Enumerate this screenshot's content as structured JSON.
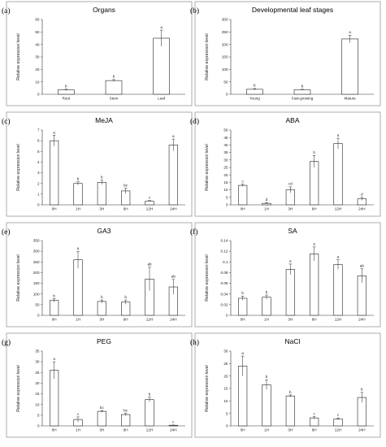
{
  "figure": {
    "ylabel": "Relative expression level"
  },
  "chart_data": [
    {
      "type": "bar",
      "letter": "(a)",
      "title": "Organs",
      "categories": [
        "Root",
        "Stem",
        "Leaf"
      ],
      "values": [
        3.5,
        11,
        45
      ],
      "errors": [
        0.6,
        0.8,
        6.5
      ],
      "significance": [
        "b",
        "b",
        "a"
      ],
      "ylim": [
        0,
        60
      ],
      "yticks": [
        0,
        10,
        20,
        30,
        40,
        50,
        60
      ]
    },
    {
      "type": "bar",
      "letter": "(b)",
      "title": "Developmental leaf stages",
      "categories": [
        "Young",
        "Fast-growing",
        "Mature"
      ],
      "values": [
        20,
        18,
        222
      ],
      "errors": [
        3,
        2,
        15
      ],
      "significance": [
        "b",
        "b",
        "a"
      ],
      "ylim": [
        0,
        300
      ],
      "yticks": [
        0,
        50,
        100,
        150,
        200,
        250,
        300
      ]
    },
    {
      "type": "bar",
      "letter": "(c)",
      "title": "MeJA",
      "categories": [
        "0H",
        "1H",
        "3H",
        "6H",
        "12H",
        "24H"
      ],
      "values": [
        6.0,
        2.0,
        2.1,
        1.3,
        0.35,
        5.6
      ],
      "errors": [
        0.5,
        0.15,
        0.2,
        0.25,
        0.05,
        0.55
      ],
      "significance": [
        "a",
        "b",
        "b",
        "bc",
        "c",
        "a"
      ],
      "ylim": [
        0,
        7
      ],
      "yticks": [
        0,
        1,
        2,
        3,
        4,
        5,
        6,
        7
      ]
    },
    {
      "type": "bar",
      "letter": "(d)",
      "title": "ABA",
      "categories": [
        "0H",
        "1H",
        "3H",
        "6H",
        "12H",
        "24H"
      ],
      "values": [
        13,
        1,
        10,
        29,
        41,
        4
      ],
      "errors": [
        0.8,
        0.4,
        2,
        4,
        3.5,
        1
      ],
      "significance": [
        "c",
        "d",
        "cd",
        "b",
        "a",
        "d"
      ],
      "ylim": [
        0,
        50
      ],
      "yticks": [
        0,
        5,
        10,
        15,
        20,
        25,
        30,
        35,
        40,
        45,
        50
      ]
    },
    {
      "type": "bar",
      "letter": "(e)",
      "title": "GA3",
      "categories": [
        "0H",
        "1H",
        "3H",
        "6H",
        "12H",
        "24H"
      ],
      "values": [
        70,
        260,
        65,
        62,
        170,
        133
      ],
      "errors": [
        8,
        40,
        7,
        10,
        55,
        35
      ],
      "significance": [
        "b",
        "a",
        "b",
        "b",
        "ab",
        "ab"
      ],
      "ylim": [
        0,
        350
      ],
      "yticks": [
        0,
        50,
        100,
        150,
        200,
        250,
        300,
        350
      ]
    },
    {
      "type": "bar",
      "letter": "(f)",
      "title": "SA",
      "categories": [
        "0H",
        "1H",
        "3H",
        "6H",
        "12H",
        "24H"
      ],
      "values": [
        0.032,
        0.034,
        0.086,
        0.115,
        0.095,
        0.074
      ],
      "errors": [
        0.004,
        0.004,
        0.01,
        0.013,
        0.009,
        0.013
      ],
      "significance": [
        "b",
        "b",
        "a",
        "a",
        "a",
        "ab"
      ],
      "ylim": [
        0,
        0.14
      ],
      "yticks": [
        0,
        0.02,
        0.04,
        0.06,
        0.08,
        0.1,
        0.12,
        0.14
      ]
    },
    {
      "type": "bar",
      "letter": "(g)",
      "title": "PEG",
      "categories": [
        "0H",
        "1H",
        "3H",
        "6H",
        "12H",
        "24H"
      ],
      "values": [
        26,
        3,
        6.8,
        5.3,
        12.3,
        0.3
      ],
      "errors": [
        4,
        1.2,
        0.4,
        0.5,
        1.1,
        0.1
      ],
      "significance": [
        "a",
        "c",
        "bc",
        "bc",
        "b",
        "c"
      ],
      "ylim": [
        0,
        35
      ],
      "yticks": [
        0,
        5,
        10,
        15,
        20,
        25,
        30,
        35
      ]
    },
    {
      "type": "bar",
      "letter": "(h)",
      "title": "NaCl",
      "categories": [
        "0H",
        "1H",
        "3H",
        "6H",
        "12H",
        "24H"
      ],
      "values": [
        24,
        16.5,
        12,
        3.2,
        2.8,
        11.4
      ],
      "errors": [
        4,
        2,
        0.4,
        0.5,
        0.4,
        2
      ],
      "significance": [
        "a",
        "b",
        "b",
        "c",
        "c",
        "b"
      ],
      "ylim": [
        0,
        30
      ],
      "yticks": [
        0,
        5,
        10,
        15,
        20,
        25,
        30
      ]
    }
  ]
}
